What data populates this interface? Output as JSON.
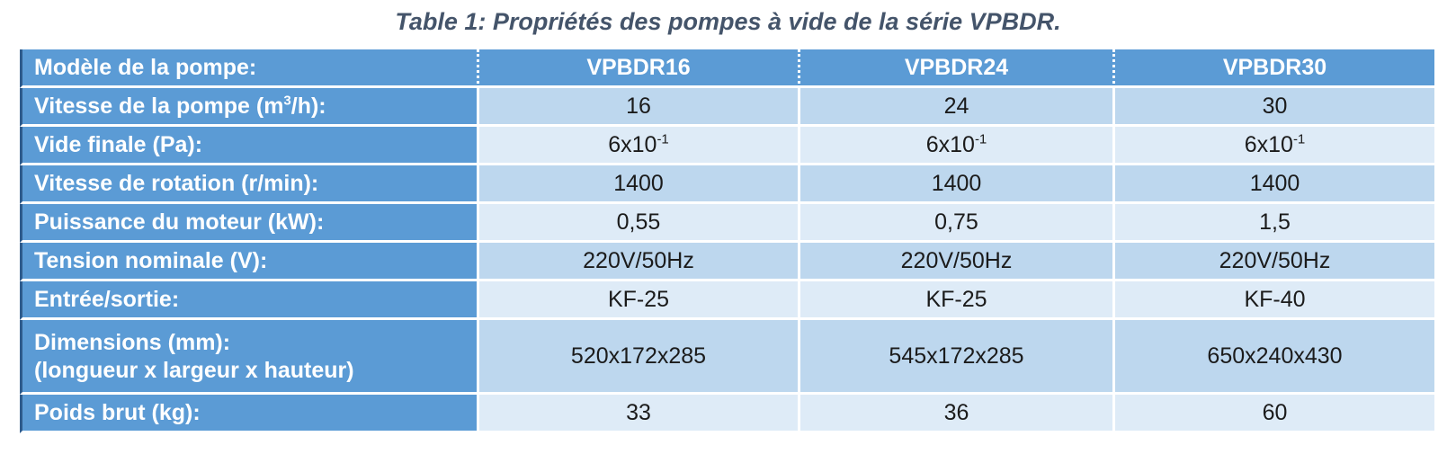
{
  "title": "Table 1: Propriétés des pompes à vide de la série VPBDR.",
  "colors": {
    "header_blue": "#5B9BD5",
    "row_medium_blue": "#BDD7EE",
    "row_light_blue": "#DEEBF7",
    "title_color": "#44546A",
    "accent_left_border": "#2E5B8C",
    "header_text": "#ffffff",
    "data_text": "#1b1b1b"
  },
  "table": {
    "header": {
      "label": "Modèle de la pompe:",
      "models": [
        "VPBDR16",
        "VPBDR24",
        "VPBDR30"
      ]
    },
    "rows": {
      "speed": {
        "label_a": "Vitesse de la pompe (m",
        "label_sup": "3",
        "label_b": "/h):",
        "v1": "16",
        "v2": "24",
        "v3": "30"
      },
      "vacuum": {
        "label": "Vide finale (Pa):",
        "v1": {
          "base": "6x10",
          "sup": "-1"
        },
        "v2": {
          "base": "6x10",
          "sup": "-1"
        },
        "v3": {
          "base": "6x10",
          "sup": "-1"
        }
      },
      "rotation": {
        "label": "Vitesse de rotation (r/min):",
        "v1": "1400",
        "v2": "1400",
        "v3": "1400"
      },
      "power": {
        "label": "Puissance du moteur (kW):",
        "v1": "0,55",
        "v2": "0,75",
        "v3": "1,5"
      },
      "voltage": {
        "label": "Tension nominale (V):",
        "v1": "220V/50Hz",
        "v2": "220V/50Hz",
        "v3": "220V/50Hz"
      },
      "ports": {
        "label": "Entrée/sortie:",
        "v1": "KF-25",
        "v2": "KF-25",
        "v3": "KF-40"
      },
      "dimensions": {
        "label_line1": "Dimensions (mm):",
        "label_line2": "(longueur x largeur x hauteur)",
        "v1": "520x172x285",
        "v2": "545x172x285",
        "v3": "650x240x430"
      },
      "weight": {
        "label": "Poids brut (kg):",
        "v1": "33",
        "v2": "36",
        "v3": "60"
      }
    }
  }
}
